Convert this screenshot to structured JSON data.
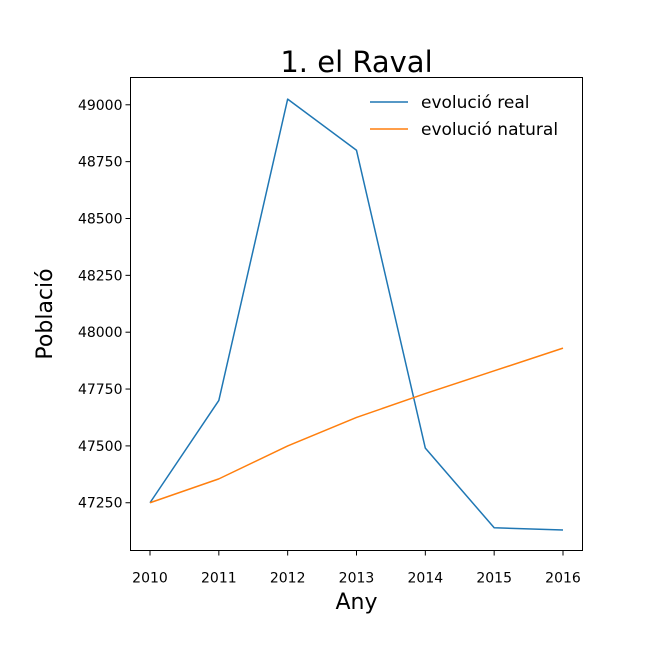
{
  "chart_data": {
    "type": "line",
    "title": "1. el Raval",
    "xlabel": "Any",
    "ylabel": "Població",
    "x": [
      2010,
      2011,
      2012,
      2013,
      2014,
      2015,
      2016
    ],
    "xticks": [
      "2010",
      "2011",
      "2012",
      "2013",
      "2014",
      "2015",
      "2016"
    ],
    "yticks": [
      "47250",
      "47500",
      "47750",
      "48000",
      "48250",
      "48500",
      "48750",
      "49000"
    ],
    "ylim": [
      47040,
      49120
    ],
    "grid": false,
    "legend_position": "top-right",
    "series": [
      {
        "name": "evolució real",
        "color": "#1f77b4",
        "values": [
          47250,
          47700,
          49025,
          48800,
          47490,
          47140,
          47130
        ]
      },
      {
        "name": "evolució natural",
        "color": "#ff7f0e",
        "values": [
          47250,
          47355,
          47500,
          47625,
          47730,
          47830,
          47930
        ]
      }
    ]
  }
}
